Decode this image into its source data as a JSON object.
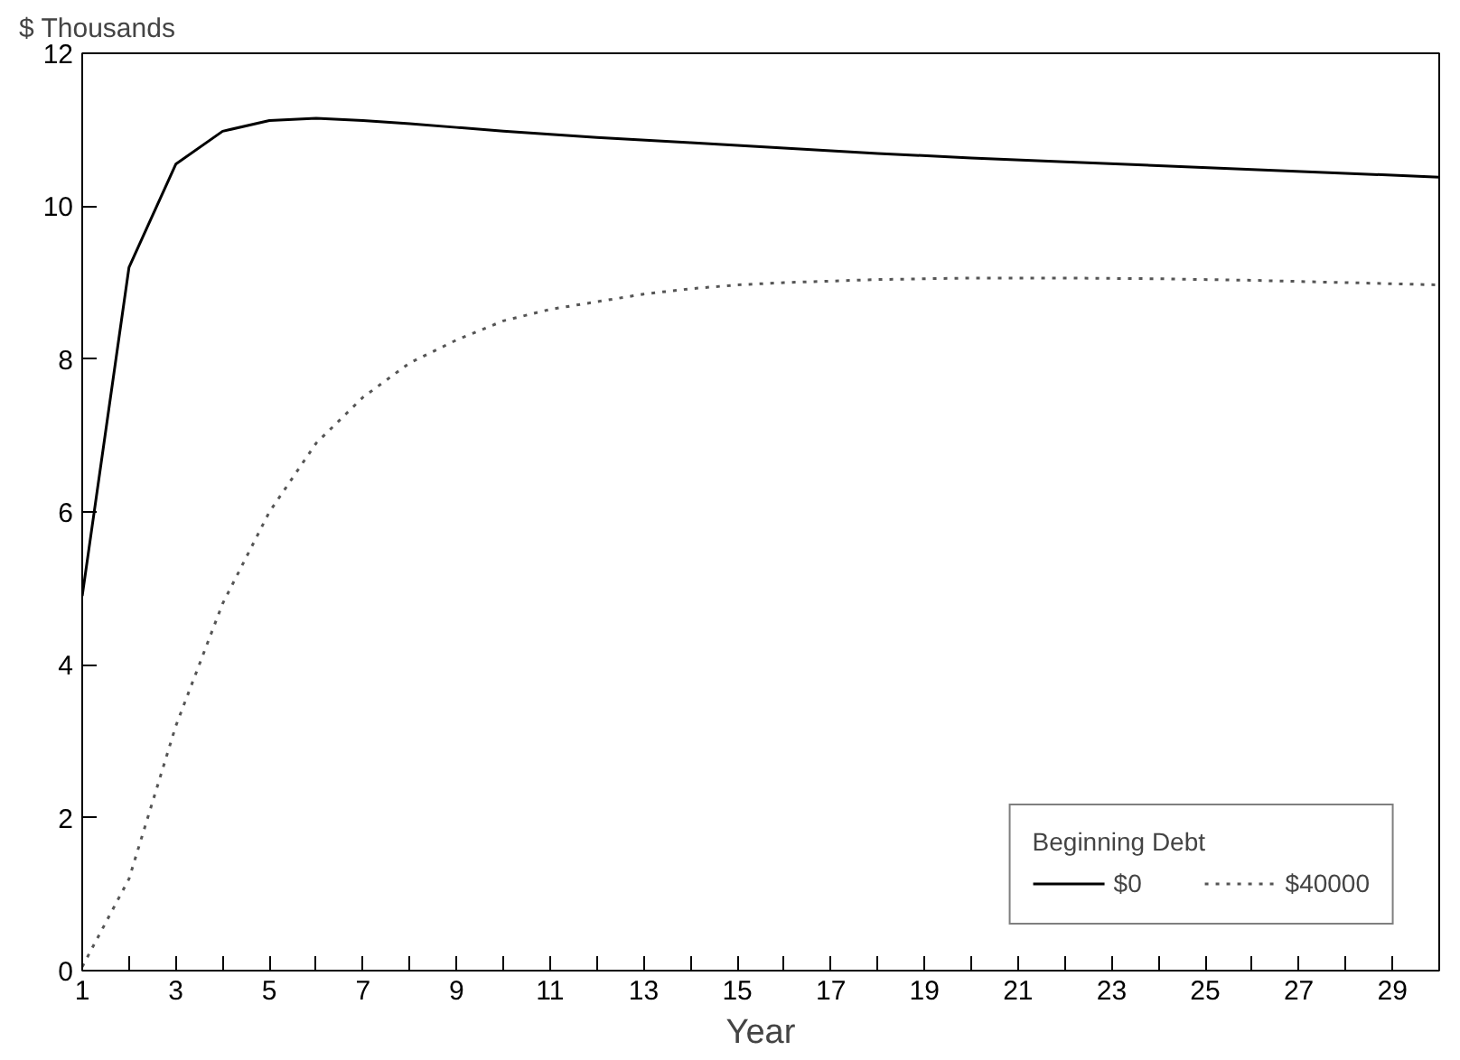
{
  "chart_data": {
    "type": "line",
    "ylabel": "$ Thousands",
    "xlabel": "Year",
    "legend_title": "Beginning Debt",
    "legend": "bottom right",
    "grid": false,
    "marker": "none",
    "xlim": [
      1,
      30
    ],
    "ylim": [
      0,
      12
    ],
    "xticks": [
      1,
      {
        "value": 2,
        "label": null
      },
      3,
      {
        "value": 4,
        "label": null
      },
      5,
      {
        "value": 6,
        "label": null
      },
      7,
      {
        "value": 8,
        "label": null
      },
      9,
      {
        "value": 10,
        "label": null
      },
      11,
      {
        "value": 12,
        "label": null
      },
      13,
      {
        "value": 14,
        "label": null
      },
      15,
      {
        "value": 16,
        "label": null
      },
      17,
      {
        "value": 18,
        "label": null
      },
      19,
      {
        "value": 20,
        "label": null
      },
      21,
      {
        "value": 22,
        "label": null
      },
      23,
      {
        "value": 24,
        "label": null
      },
      25,
      {
        "value": 26,
        "label": null
      },
      27,
      {
        "value": 28,
        "label": null
      },
      29
    ],
    "yticks": [
      0,
      2,
      4,
      6,
      8,
      10,
      12
    ],
    "series": [
      {
        "name": "$0",
        "color": "#000000",
        "line_style": "solid",
        "x": [
          1,
          2,
          3,
          4,
          5,
          6,
          7,
          8,
          9,
          10,
          12,
          14,
          16,
          18,
          20,
          22,
          24,
          26,
          28,
          30
        ],
        "values": [
          4.9,
          9.2,
          10.55,
          10.98,
          11.12,
          11.15,
          11.12,
          11.08,
          11.03,
          10.98,
          10.9,
          10.83,
          10.76,
          10.69,
          10.63,
          10.58,
          10.53,
          10.48,
          10.43,
          10.38
        ]
      },
      {
        "name": "$40000",
        "color": "#555555",
        "line_style": "dotted",
        "x": [
          1,
          2,
          3,
          4,
          5,
          6,
          7,
          8,
          9,
          10,
          11,
          12,
          13,
          14,
          15,
          16,
          17,
          18,
          19,
          20,
          22,
          24,
          26,
          28,
          30
        ],
        "values": [
          0.05,
          1.2,
          3.2,
          4.8,
          6.0,
          6.9,
          7.5,
          7.95,
          8.25,
          8.5,
          8.65,
          8.75,
          8.85,
          8.92,
          8.97,
          9.0,
          9.02,
          9.04,
          9.05,
          9.06,
          9.06,
          9.05,
          9.03,
          9.0,
          8.97
        ]
      }
    ]
  }
}
